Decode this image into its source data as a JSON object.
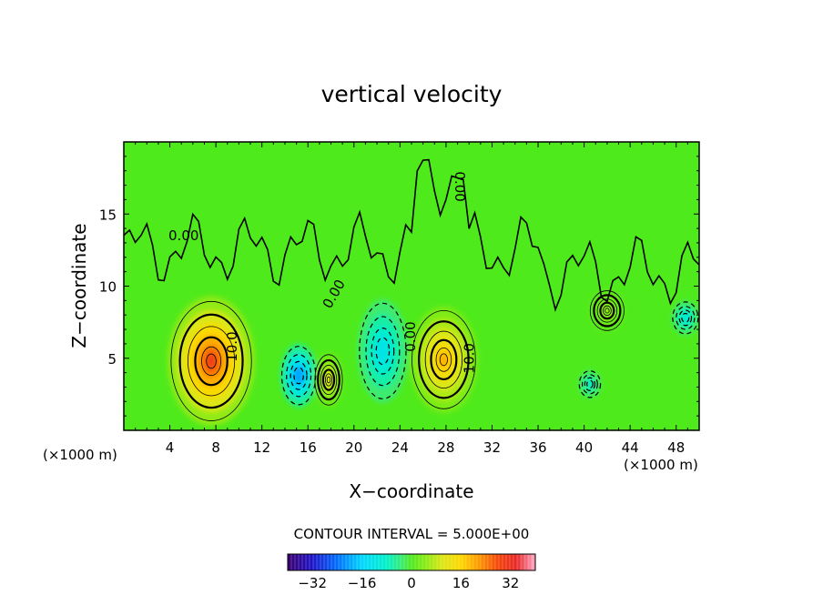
{
  "chart_data": {
    "type": "heatmap",
    "title": "vertical velocity",
    "xlabel": "X−coordinate",
    "ylabel": "Z−coordinate",
    "x_unit_left": "(×1000 m)",
    "x_unit_right": "(×1000 m)",
    "xlim": [
      0,
      50
    ],
    "ylim": [
      0,
      20
    ],
    "x_ticks": [
      4,
      8,
      12,
      16,
      20,
      24,
      28,
      32,
      36,
      40,
      44,
      48
    ],
    "y_ticks": [
      5,
      10,
      15
    ],
    "contour_interval_text": "CONTOUR INTERVAL = 5.000E+00",
    "contour_labels": [
      {
        "text": "0.00",
        "x": 5.2,
        "z": 13.2
      },
      {
        "text": "0.00",
        "x": 18.6,
        "z": 9.3
      },
      {
        "text": "0.00",
        "x": 28.8,
        "z": 16.9
      },
      {
        "text": "0.00",
        "x": 25.3,
        "z": 6.5
      },
      {
        "text": "10.0",
        "x": 9.8,
        "z": 5.8
      },
      {
        "text": "10.0",
        "x": 30.4,
        "z": 5.0
      }
    ],
    "features": [
      {
        "kind": "updraft",
        "x": 7.6,
        "z": 4.8,
        "peak": 30
      },
      {
        "kind": "downdraft",
        "x": 15.2,
        "z": 3.8,
        "peak": -20
      },
      {
        "kind": "updraft",
        "x": 17.8,
        "z": 3.5,
        "peak": 12
      },
      {
        "kind": "downdraft",
        "x": 22.5,
        "z": 5.5,
        "peak": -12
      },
      {
        "kind": "updraft",
        "x": 27.8,
        "z": 4.9,
        "peak": 20
      },
      {
        "kind": "updraft",
        "x": 42.0,
        "z": 8.3,
        "peak": 6
      },
      {
        "kind": "downdraft",
        "x": 48.8,
        "z": 7.8,
        "peak": -10
      },
      {
        "kind": "downdraft",
        "x": 40.5,
        "z": 3.2,
        "peak": -8
      }
    ],
    "colorbar": {
      "min": -40,
      "max": 40,
      "tick_values": [
        -32,
        -16,
        0,
        16,
        32
      ],
      "tick_labels": [
        "−32",
        "−16",
        "0",
        "16",
        "32"
      ]
    }
  }
}
